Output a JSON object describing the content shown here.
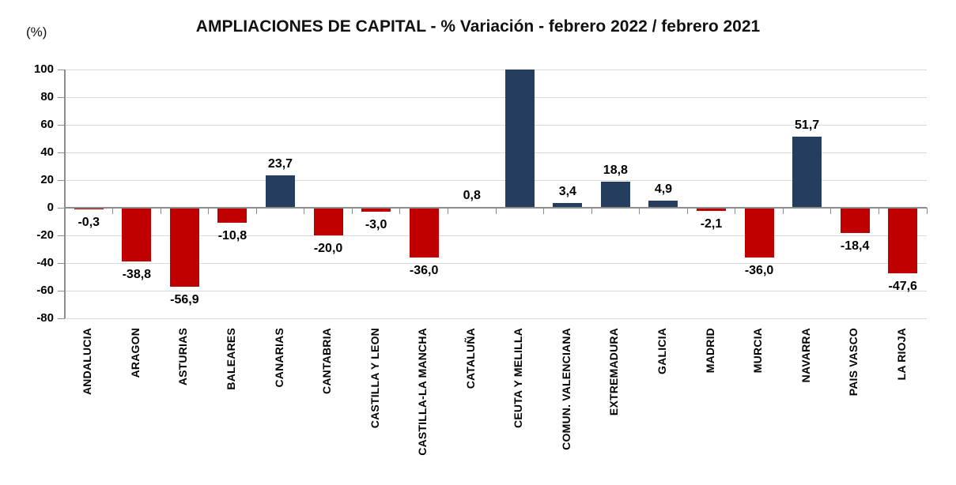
{
  "header": {
    "title": "AMPLIACIONES DE CAPITAL - % Variación - febrero 2022 / febrero 2021",
    "unit_label": "(%)"
  },
  "chart_data": {
    "type": "bar",
    "title": "AMPLIACIONES DE CAPITAL - % Variación - febrero 2022 / febrero 2021",
    "xlabel": "",
    "ylabel": "(%)",
    "ylim": [
      -80,
      100
    ],
    "y_ticks": [
      100,
      80,
      60,
      40,
      20,
      0,
      -20,
      -40,
      -60,
      -80
    ],
    "grid": true,
    "legend": false,
    "categories": [
      "ANDALUCIA",
      "ARAGON",
      "ASTURIAS",
      "BALEARES",
      "CANARIAS",
      "CANTABRIA",
      "CASTILLA Y LEON",
      "CASTILLA-LA MANCHA",
      "CATALUÑA",
      "CEUTA Y MELILLA",
      "COMUN. VALENCIANA",
      "EXTREMADURA",
      "GALICIA",
      "MADRID",
      "MURCIA",
      "NAVARRA",
      "PAIS VASCO",
      "LA RIOJA"
    ],
    "values": [
      -0.3,
      -38.8,
      -56.9,
      -10.8,
      23.7,
      -20.0,
      -3.0,
      -36.0,
      0.8,
      100,
      3.4,
      18.8,
      4.9,
      -2.1,
      -36.0,
      51.7,
      -18.4,
      -47.6
    ],
    "data_labels": [
      "-0,3",
      "-38,8",
      "-56,9",
      "-10,8",
      "23,7",
      "-20,0",
      "-3,0",
      "-36,0",
      "0,8",
      "",
      "3,4",
      "18,8",
      "4,9",
      "-2,1",
      "-36,0",
      "51,7",
      "-18,4",
      "-47,6"
    ],
    "colors": {
      "positive_bar": "#253E5E",
      "negative_bar": "#C00000"
    }
  },
  "style": {
    "gridline_color": "#D9D9D9",
    "axis_color": "#8C8C8C",
    "text_color": "#000000",
    "background": "#FFFFFF"
  }
}
